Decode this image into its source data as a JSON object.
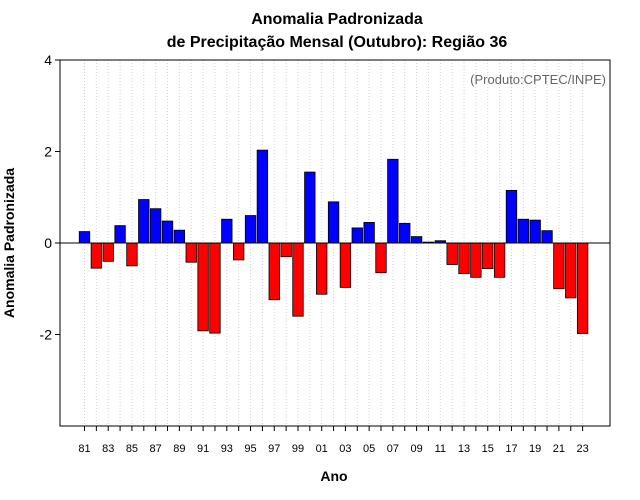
{
  "chart_data": {
    "type": "bar",
    "title": "Anomalia Padronizada",
    "subtitle": "de Precipitação Mensal (Outubro): Região 36",
    "xlabel": "Ano",
    "ylabel": "Anomalia Padronizada",
    "annotation": "(Produto:CPTEC/INPE)",
    "ylim": [
      -4,
      4
    ],
    "yticks": [
      4,
      2,
      0,
      -2
    ],
    "ytick_labels": [
      "4",
      "2",
      "0",
      "-2"
    ],
    "grid": "vertical dotted",
    "categories": [
      "81",
      "82",
      "83",
      "84",
      "85",
      "86",
      "87",
      "88",
      "89",
      "90",
      "91",
      "92",
      "93",
      "94",
      "95",
      "96",
      "97",
      "98",
      "99",
      "00",
      "01",
      "02",
      "03",
      "04",
      "05",
      "06",
      "07",
      "08",
      "09",
      "10",
      "11",
      "12",
      "13",
      "14",
      "15",
      "16",
      "17",
      "18",
      "19",
      "20",
      "21",
      "22",
      "23"
    ],
    "xtick_labels": [
      "81",
      "83",
      "85",
      "87",
      "89",
      "91",
      "93",
      "95",
      "97",
      "99",
      "01",
      "03",
      "05",
      "07",
      "09",
      "11",
      "13",
      "15",
      "17",
      "19",
      "21",
      "23"
    ],
    "values": [
      0.25,
      -0.55,
      -0.4,
      0.38,
      -0.5,
      0.95,
      0.75,
      0.48,
      0.28,
      -0.42,
      -1.92,
      -1.97,
      0.52,
      -0.37,
      0.6,
      2.03,
      -1.24,
      -0.3,
      -1.6,
      1.55,
      -1.12,
      0.9,
      -0.97,
      0.33,
      0.45,
      -0.65,
      1.83,
      0.43,
      0.14,
      0.02,
      0.05,
      -0.47,
      -0.67,
      -0.75,
      -0.56,
      -0.75,
      1.15,
      0.52,
      0.5,
      0.27,
      -1.0,
      -1.2,
      -1.98
    ],
    "colors": {
      "positive": "#0000ff",
      "negative": "#ff0000",
      "axis": "#000000",
      "grid": "#d3d3d3"
    }
  }
}
